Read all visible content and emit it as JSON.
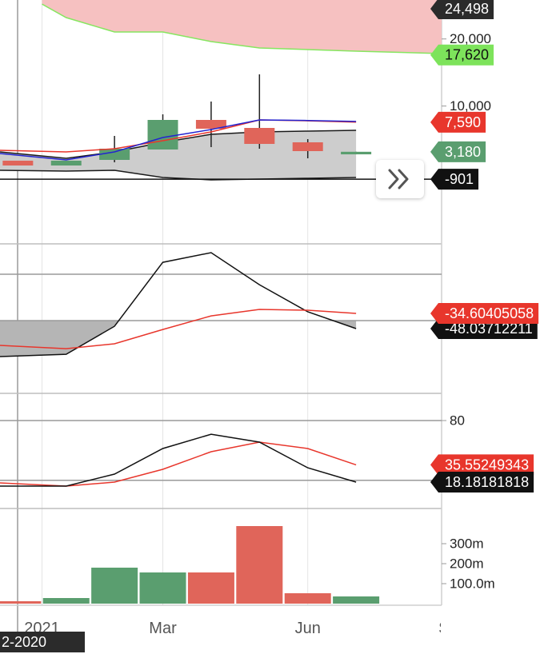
{
  "chart_data": [
    {
      "type": "candlestick",
      "ylim": [
        -10547,
        25809
      ],
      "yticks": [
        {
          "value": 20000,
          "label": "20,000"
        },
        {
          "value": 10000,
          "label": "10,000"
        }
      ],
      "x": [
        0,
        1,
        2,
        3,
        4,
        5,
        6,
        7
      ],
      "open": [
        1850,
        1135,
        1970,
        3518,
        7929,
        6737,
        4591,
        2800
      ],
      "high": [
        1850,
        1850,
        5545,
        8764,
        10671,
        14724,
        5068,
        3180
      ],
      "low": [
        1135,
        1135,
        1610,
        3518,
        3876,
        3638,
        2208,
        2800
      ],
      "close": [
        1135,
        1850,
        3638,
        7929,
        6618,
        4353,
        3280,
        3180
      ],
      "up_color": "#5a9e6f",
      "down_color": "#e0655a",
      "clouds": [
        {
          "color": "#f6c1c1",
          "edge_color": "#86e660",
          "x": [
            0.5,
            1,
            2,
            3,
            4,
            5,
            6,
            7,
            8.77
          ],
          "upper": [
            26000,
            26000,
            26000,
            26000,
            26000,
            26000,
            26000,
            26000,
            26000
          ],
          "lower": [
            25200,
            23187,
            21041,
            21041,
            19611,
            18657,
            18419,
            18180,
            17823
          ]
        },
        {
          "color": "#cdcdcd",
          "edge_color": "#1a1a1a",
          "x": [
            -0.37,
            1,
            2,
            3,
            4,
            5,
            6,
            7
          ],
          "upper": [
            3161,
            2208,
            3161,
            4591,
            5783,
            6141,
            6260,
            6379
          ],
          "lower": [
            420,
            300,
            420,
            -653,
            -1010,
            -891,
            -772,
            -653
          ]
        }
      ],
      "lines": [
        {
          "color": "#e8362c",
          "x": [
            -0.37,
            1,
            2,
            3,
            4,
            5,
            6,
            7
          ],
          "values": [
            3400,
            3161,
            3638,
            4830,
            6141,
            7929,
            7800,
            7590
          ]
        },
        {
          "color": "#2323d0",
          "x": [
            -0.37,
            1,
            2,
            3,
            4,
            5,
            6,
            7
          ],
          "values": [
            2923,
            1970,
            3161,
            5307,
            6499,
            7929,
            7850,
            7700
          ]
        }
      ],
      "price_labels": [
        {
          "value": 24498,
          "label": "24,498",
          "color": "#2b2b2b",
          "text_color": "#ffffff"
        },
        {
          "value": 17620,
          "label": "17,620",
          "color": "#7de35b",
          "text_color": "#111111"
        },
        {
          "value": 7590,
          "label": "7,590",
          "color": "#e8362c",
          "text_color": "#ffffff"
        },
        {
          "value": 3180,
          "label": "3,180",
          "color": "#5a9e6f",
          "text_color": "#ffffff"
        },
        {
          "value": -901,
          "label": "-901",
          "color": "#111111",
          "text_color": "#ffffff",
          "line": true
        }
      ]
    },
    {
      "type": "line",
      "ylim": [
        -105.3,
        26.9
      ],
      "hlines": [
        0
      ],
      "baseline": -41,
      "fill_color": "#b5b5b5",
      "x": [
        -0.37,
        1,
        2,
        3,
        4,
        5,
        6,
        7
      ],
      "series": [
        {
          "color": "#111111",
          "values": [
            -72.8,
            -70.7,
            -46.0,
            10.6,
            19.1,
            -9.2,
            -33.2,
            -48.03712211
          ]
        },
        {
          "color": "#e8362c",
          "values": [
            -62.9,
            -65.8,
            -61.5,
            -48.8,
            -36.8,
            -31.1,
            -31.8,
            -34.60405058
          ]
        }
      ]
    },
    {
      "type": "line",
      "ylim": [
        -8.3,
        107.3
      ],
      "yticks": [
        80
      ],
      "hlines": [
        20
      ],
      "x": [
        -0.37,
        1,
        2,
        3,
        4,
        5,
        6,
        7
      ],
      "series": [
        {
          "color": "#e8362c",
          "values": [
            17.4,
            14.2,
            18.2,
            31.0,
            48.7,
            58.3,
            51.9,
            35.55249343
          ]
        },
        {
          "color": "#111111",
          "values": [
            14.2,
            14.2,
            26.2,
            51.9,
            66.3,
            58.3,
            32.6,
            18.18181818
          ]
        }
      ]
    },
    {
      "type": "bar",
      "ylim": [
        0,
        476000000
      ],
      "yticks": [
        {
          "value": 300000000,
          "label": "300m"
        },
        {
          "value": 200000000,
          "label": "200m"
        },
        {
          "value": 100000000,
          "label": "100.0m"
        }
      ],
      "xlim": [
        -0.37,
        8.77
      ],
      "xticks": [
        {
          "value": 0.5,
          "label": "2021"
        },
        {
          "value": 3,
          "label": "Mar"
        },
        {
          "value": 6,
          "label": "Jun"
        },
        {
          "value": 9,
          "label": "Sep"
        }
      ],
      "x": [
        0,
        1,
        2,
        3,
        4,
        5,
        6,
        7
      ],
      "values": [
        12000000,
        28000000,
        180000000,
        156000000,
        156000000,
        388000000,
        52000000,
        36000000
      ],
      "colors": [
        "#e0655a",
        "#5a9e6f",
        "#5a9e6f",
        "#5a9e6f",
        "#e0655a",
        "#e0655a",
        "#e0655a",
        "#5a9e6f"
      ]
    }
  ],
  "crosshair_label": "2-2020"
}
